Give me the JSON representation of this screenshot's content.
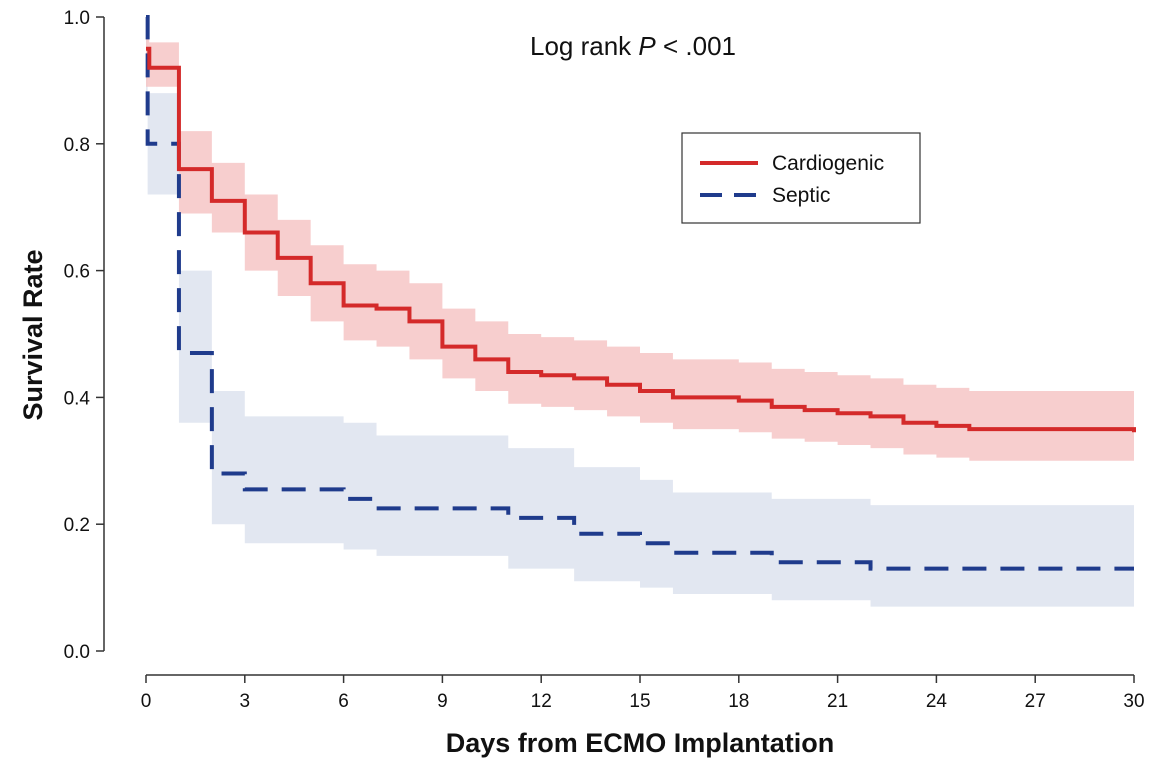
{
  "chart_data": {
    "type": "line",
    "subtype": "kaplan-meier step curves with confidence bands",
    "xlabel": "Days from ECMO Implantation",
    "ylabel": "Survival Rate",
    "annotation": {
      "prefix": "Log rank ",
      "italic": "P",
      "suffix": " < .001"
    },
    "xlim": [
      0,
      30
    ],
    "ylim": [
      0,
      1.0
    ],
    "x_ticks": [
      0,
      3,
      6,
      9,
      12,
      15,
      18,
      21,
      24,
      27,
      30
    ],
    "x_tick_labels": [
      "0",
      "3",
      "6",
      "9",
      "12",
      "15",
      "18",
      "21",
      "24",
      "27",
      "30"
    ],
    "y_ticks": [
      0.0,
      0.2,
      0.4,
      0.6,
      0.8,
      1.0
    ],
    "y_tick_labels": [
      "0.0",
      "0.2",
      "0.4",
      "0.6",
      "0.8",
      "1.0"
    ],
    "grid": false,
    "legend_placement": "upper-right (inset)",
    "series": [
      {
        "name": "Cardiogenic",
        "color": "#d42a2a",
        "band_color": "#f6c6c6",
        "dash": "solid",
        "x": [
          0,
          0.1,
          1.0,
          2.0,
          3.0,
          4.0,
          5.0,
          6.0,
          7.0,
          8.0,
          9.0,
          10.0,
          11.0,
          12.0,
          13.0,
          14.0,
          15.0,
          16.0,
          18.0,
          19.0,
          20.0,
          21.0,
          22.0,
          23.0,
          24.0,
          25.0,
          30.0
        ],
        "y": [
          0.95,
          0.92,
          0.76,
          0.71,
          0.66,
          0.62,
          0.58,
          0.545,
          0.54,
          0.52,
          0.48,
          0.46,
          0.44,
          0.435,
          0.43,
          0.42,
          0.41,
          0.4,
          0.395,
          0.385,
          0.38,
          0.375,
          0.37,
          0.36,
          0.355,
          0.35,
          0.345
        ],
        "lower": [
          0.89,
          0.89,
          0.69,
          0.66,
          0.6,
          0.56,
          0.52,
          0.49,
          0.48,
          0.46,
          0.43,
          0.41,
          0.39,
          0.385,
          0.38,
          0.37,
          0.36,
          0.35,
          0.345,
          0.335,
          0.33,
          0.325,
          0.32,
          0.31,
          0.305,
          0.3,
          0.3
        ],
        "upper": [
          0.99,
          0.96,
          0.82,
          0.77,
          0.72,
          0.68,
          0.64,
          0.61,
          0.6,
          0.58,
          0.54,
          0.52,
          0.5,
          0.495,
          0.49,
          0.48,
          0.47,
          0.46,
          0.455,
          0.445,
          0.44,
          0.435,
          0.43,
          0.42,
          0.415,
          0.41,
          0.41
        ]
      },
      {
        "name": "Septic",
        "color": "#1f3b8c",
        "band_color": "#dde3ef",
        "dash": "dashed",
        "x": [
          0,
          0.05,
          1.0,
          2.0,
          3.0,
          6.0,
          7.0,
          11.0,
          13.0,
          15.0,
          16.0,
          19.0,
          22.0,
          30.0
        ],
        "y": [
          1.0,
          0.8,
          0.47,
          0.28,
          0.255,
          0.24,
          0.225,
          0.21,
          0.185,
          0.17,
          0.155,
          0.14,
          0.13,
          0.13
        ],
        "lower": [
          0.88,
          0.72,
          0.36,
          0.2,
          0.17,
          0.16,
          0.15,
          0.13,
          0.11,
          0.1,
          0.09,
          0.08,
          0.07,
          0.07
        ],
        "upper": [
          1.0,
          0.88,
          0.6,
          0.41,
          0.37,
          0.36,
          0.34,
          0.32,
          0.29,
          0.27,
          0.25,
          0.24,
          0.23,
          0.23
        ]
      }
    ]
  }
}
